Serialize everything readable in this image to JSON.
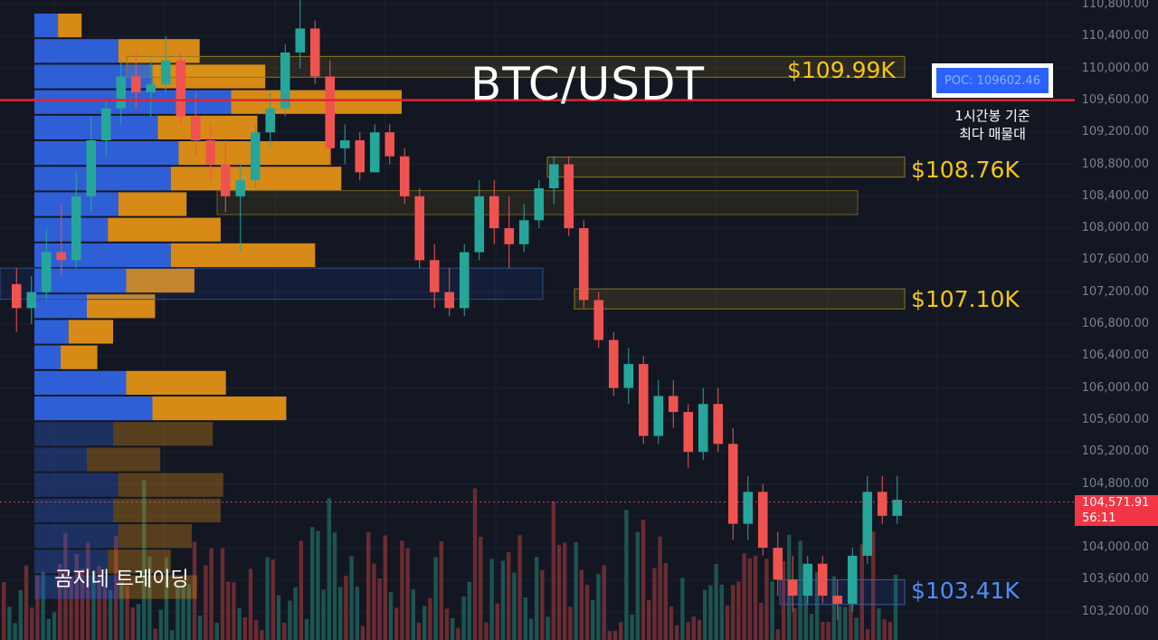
{
  "title": "BTC/USDT",
  "channel": "곰지네 트레이딩",
  "poc": {
    "label": "POC: 109602.46",
    "note_line1": "1시간봉 기준",
    "note_line2": "최다 매물대"
  },
  "levels": [
    {
      "label": "$109.99K",
      "color": "#f5c518"
    },
    {
      "label": "$108.76K",
      "color": "#f5c518"
    },
    {
      "label": "$107.10K",
      "color": "#f5c518"
    },
    {
      "label": "$103.41K",
      "color": "#4f8ff7"
    }
  ],
  "current_price": {
    "price": "104,571.91",
    "countdown": "56:11"
  },
  "colors": {
    "background": "#131722",
    "up": "#26a69a",
    "down": "#ef5350",
    "vp_buy": "#2f5fd6",
    "vp_sell": "#d78a16",
    "poc_line": "#e0242e",
    "zone": "#f5c518"
  },
  "chart_data": {
    "type": "candlestick",
    "title": "BTC/USDT",
    "yaxis": {
      "min": 103000,
      "max": 110900,
      "ticks": [
        110800,
        110400,
        110000,
        109600,
        109200,
        108800,
        108400,
        108000,
        107600,
        107200,
        106800,
        106400,
        106000,
        105600,
        105200,
        104800,
        104400,
        104000,
        103600,
        103200
      ]
    },
    "tick_labels": [
      "110,800.00",
      "110,400.00",
      "110,000.00",
      "109,600.00",
      "109,200.00",
      "108,800.00",
      "108,400.00",
      "108,000.00",
      "107,600.00",
      "107,200.00",
      "106,800.00",
      "106,400.00",
      "106,000.00",
      "105,600.00",
      "105,200.00",
      "104,800.00",
      "",
      "104,000.00",
      "103,600.00",
      "103,200.00"
    ],
    "poc_price": 109602.46,
    "current_price": 104571.91,
    "zones": [
      {
        "label": "$109.99K",
        "low": 109890,
        "high": 110150
      },
      {
        "label": "$108.76K",
        "low": 108640,
        "high": 108890
      },
      {
        "label": "$107.10K",
        "low": 106990,
        "high": 107240
      },
      {
        "label": "$103.41K",
        "low": 103290,
        "high": 103600
      }
    ],
    "candles": [
      [
        107300,
        107500,
        106700,
        107000
      ],
      [
        107000,
        107400,
        106800,
        107200
      ],
      [
        107200,
        108000,
        107100,
        107700
      ],
      [
        107700,
        108300,
        107400,
        107600
      ],
      [
        107600,
        108700,
        107500,
        108400
      ],
      [
        108400,
        109400,
        108200,
        109100
      ],
      [
        109100,
        109600,
        108900,
        109500
      ],
      [
        109500,
        110100,
        109300,
        109900
      ],
      [
        109900,
        110200,
        109500,
        109700
      ],
      [
        109700,
        110100,
        109400,
        109800
      ],
      [
        109800,
        110400,
        109700,
        110100
      ],
      [
        110100,
        110200,
        109300,
        109400
      ],
      [
        109400,
        109700,
        108900,
        109100
      ],
      [
        109100,
        109300,
        108600,
        108800
      ],
      [
        108800,
        109100,
        108200,
        108400
      ],
      [
        108400,
        108800,
        107700,
        108600
      ],
      [
        108600,
        109300,
        108500,
        109200
      ],
      [
        109200,
        109700,
        109000,
        109500
      ],
      [
        109500,
        110300,
        109400,
        110200
      ],
      [
        110200,
        110900,
        110000,
        110500
      ],
      [
        110500,
        110600,
        109800,
        109900
      ],
      [
        109900,
        110100,
        108800,
        109000
      ],
      [
        109000,
        109300,
        108800,
        109100
      ],
      [
        109100,
        109200,
        108600,
        108700
      ],
      [
        108700,
        109300,
        108700,
        109200
      ],
      [
        109200,
        109300,
        108800,
        108900
      ],
      [
        108900,
        109000,
        108300,
        108400
      ],
      [
        108400,
        108500,
        107500,
        107600
      ],
      [
        107600,
        107800,
        107000,
        107200
      ],
      [
        107200,
        107500,
        106900,
        107000
      ],
      [
        107000,
        107800,
        106900,
        107700
      ],
      [
        107700,
        108600,
        107600,
        108400
      ],
      [
        108400,
        108600,
        107800,
        108000
      ],
      [
        108000,
        108400,
        107500,
        107800
      ],
      [
        107800,
        108300,
        107700,
        108100
      ],
      [
        108100,
        108600,
        108000,
        108500
      ],
      [
        108500,
        108900,
        108300,
        108800
      ],
      [
        108800,
        108900,
        107900,
        108000
      ],
      [
        108000,
        108100,
        107000,
        107100
      ],
      [
        107100,
        107200,
        106500,
        106600
      ],
      [
        106600,
        106700,
        105900,
        106000
      ],
      [
        106000,
        106500,
        105800,
        106300
      ],
      [
        106300,
        106400,
        105300,
        105400
      ],
      [
        105400,
        106100,
        105300,
        105900
      ],
      [
        105900,
        106100,
        105500,
        105700
      ],
      [
        105700,
        105800,
        105000,
        105200
      ],
      [
        105200,
        106000,
        105100,
        105800
      ],
      [
        105800,
        106000,
        105200,
        105300
      ],
      [
        105300,
        105500,
        104100,
        104300
      ],
      [
        104300,
        104900,
        104100,
        104700
      ],
      [
        104700,
        104800,
        103900,
        104000
      ],
      [
        104000,
        104200,
        103400,
        103600
      ],
      [
        103600,
        103900,
        103200,
        103400
      ],
      [
        103400,
        103900,
        103300,
        103800
      ],
      [
        103800,
        103900,
        103300,
        103400
      ],
      [
        103400,
        103600,
        103100,
        103300
      ],
      [
        103300,
        104000,
        103200,
        103900
      ],
      [
        103900,
        104900,
        103800,
        104700
      ],
      [
        104700,
        104900,
        104300,
        104400
      ],
      [
        104400,
        104900,
        104300,
        104600
      ]
    ],
    "volume_profile": [
      {
        "buy": 0.09,
        "sell": 0.09
      },
      {
        "buy": 0.32,
        "sell": 0.31
      },
      {
        "buy": 0.45,
        "sell": 0.43
      },
      {
        "buy": 0.75,
        "sell": 0.65
      },
      {
        "buy": 0.47,
        "sell": 0.38
      },
      {
        "buy": 0.55,
        "sell": 0.58
      },
      {
        "buy": 0.52,
        "sell": 0.65
      },
      {
        "buy": 0.32,
        "sell": 0.26
      },
      {
        "buy": 0.28,
        "sell": 0.43
      },
      {
        "buy": 0.52,
        "sell": 0.55
      },
      {
        "buy": 0.35,
        "sell": 0.26
      },
      {
        "buy": 0.2,
        "sell": 0.26
      },
      {
        "buy": 0.13,
        "sell": 0.17
      },
      {
        "buy": 0.1,
        "sell": 0.14
      },
      {
        "buy": 0.35,
        "sell": 0.38
      },
      {
        "buy": 0.45,
        "sell": 0.51
      },
      {
        "buy": 0.3,
        "sell": 0.38
      },
      {
        "buy": 0.2,
        "sell": 0.28
      },
      {
        "buy": 0.32,
        "sell": 0.4
      },
      {
        "buy": 0.3,
        "sell": 0.41
      },
      {
        "buy": 0.32,
        "sell": 0.28
      },
      {
        "buy": 0.28,
        "sell": 0.24
      },
      {
        "buy": 0.32,
        "sell": 0.3
      }
    ]
  }
}
